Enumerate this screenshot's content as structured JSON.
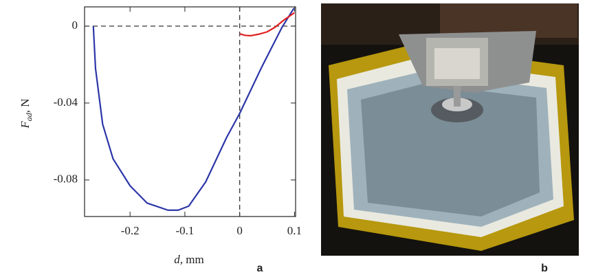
{
  "chart_data": {
    "type": "line",
    "xlabel": {
      "main": "d",
      "unit": ", mm"
    },
    "ylabel": {
      "main": "F",
      "sub": "ad",
      "unit": ", N"
    },
    "panel_labels": [
      "a",
      "b"
    ],
    "xlim": [
      -0.283,
      0.102
    ],
    "ylim": [
      -0.099,
      0.01
    ],
    "xticks": [
      -0.2,
      -0.1,
      0,
      0.1
    ],
    "yticks": [
      0,
      -0.04,
      -0.08
    ],
    "hline": 0,
    "vline": 0,
    "series": [
      {
        "color": "#2b35a8",
        "x": [
          -0.267,
          -0.263,
          -0.25,
          -0.231,
          -0.2,
          -0.169,
          -0.131,
          -0.112,
          -0.093,
          -0.062,
          -0.024,
          0,
          0.039,
          0.077,
          0.099
        ],
        "values": [
          0,
          -0.022,
          -0.051,
          -0.069,
          -0.083,
          -0.092,
          -0.0957,
          -0.0957,
          -0.0936,
          -0.081,
          -0.058,
          -0.0454,
          -0.022,
          -0.0007,
          0.0093
        ]
      },
      {
        "color": "#e02020",
        "x": [
          0,
          0.01,
          0.02,
          0.035,
          0.05,
          0.065,
          0.08,
          0.09,
          0.1
        ],
        "values": [
          -0.004,
          -0.0048,
          -0.005,
          -0.0042,
          -0.003,
          -0.0005,
          0.003,
          0.005,
          0.007
        ]
      }
    ]
  }
}
